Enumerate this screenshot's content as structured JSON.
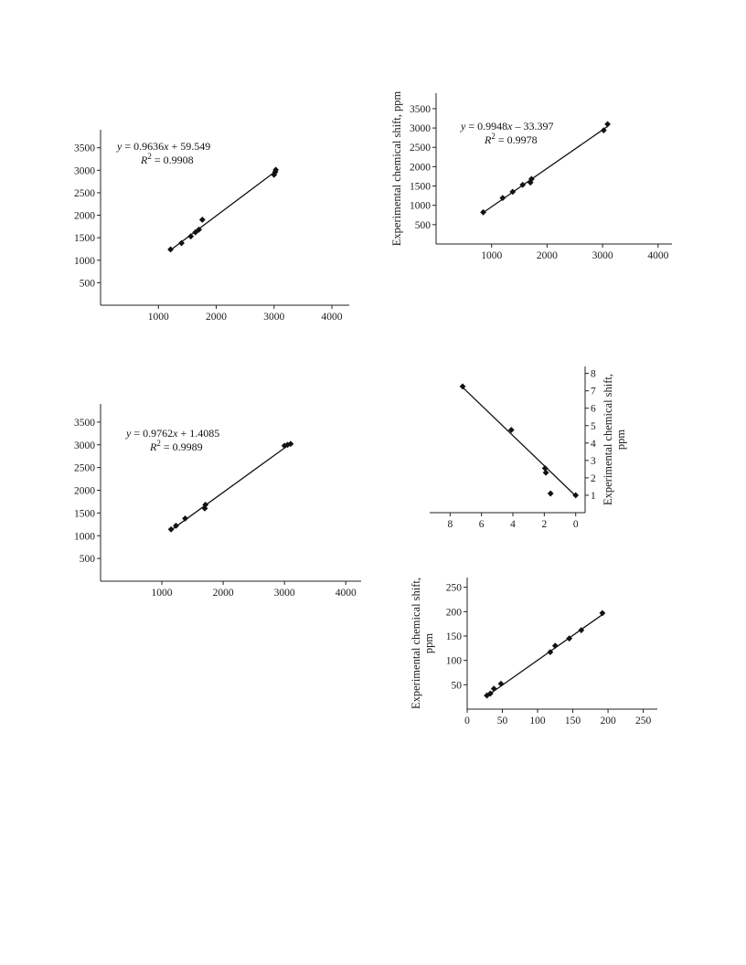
{
  "chart_data": [
    {
      "type": "scatter",
      "title": "",
      "xlabel": "",
      "ylabel": "",
      "xlim": [
        0,
        4300
      ],
      "ylim": [
        0,
        3900
      ],
      "xticks": [
        1000,
        2000,
        3000,
        4000
      ],
      "yticks": [
        500,
        1000,
        1500,
        2000,
        2500,
        3000,
        3500
      ],
      "trend": {
        "var": "y",
        "equation": " = 0.9636x + 59.549",
        "r2_label": "R",
        "r2_value": "2",
        "r2_text": " = 0.9908",
        "slope": 0.9636,
        "intercept": 59.549,
        "x_range": [
          1200,
          3050
        ]
      },
      "series": [
        {
          "points": [
            [
              1210,
              1240
            ],
            [
              1400,
              1380
            ],
            [
              1560,
              1530
            ],
            [
              1640,
              1620
            ],
            [
              1700,
              1680
            ],
            [
              1760,
              1900
            ],
            [
              3000,
              2900
            ],
            [
              3020,
              2960
            ],
            [
              3030,
              3010
            ]
          ]
        }
      ]
    },
    {
      "type": "scatter",
      "title": "",
      "xlabel": "",
      "ylabel": "Experimental chemical shift, ppm",
      "xlim": [
        0,
        4250
      ],
      "ylim": [
        0,
        3900
      ],
      "xticks": [
        1000,
        2000,
        3000,
        4000
      ],
      "yticks": [
        500,
        1000,
        1500,
        2000,
        2500,
        3000,
        3500
      ],
      "trend": {
        "var": "y",
        "equation": " = 0.9948x – 33.397",
        "r2_label": "R",
        "r2_value": "2",
        "r2_text": " = 0.9978",
        "slope": 0.9948,
        "intercept": -33.397,
        "x_range": [
          850,
          3100
        ]
      },
      "series": [
        {
          "points": [
            [
              850,
              820
            ],
            [
              1200,
              1190
            ],
            [
              1380,
              1350
            ],
            [
              1560,
              1530
            ],
            [
              1700,
              1590
            ],
            [
              1720,
              1680
            ],
            [
              3020,
              2940
            ],
            [
              3090,
              3100
            ]
          ]
        }
      ]
    },
    {
      "type": "scatter",
      "title": "",
      "xlabel": "",
      "ylabel": "",
      "xlim": [
        0,
        4250
      ],
      "ylim": [
        0,
        3900
      ],
      "xticks": [
        1000,
        2000,
        3000,
        4000
      ],
      "yticks": [
        500,
        1000,
        1500,
        2000,
        2500,
        3000,
        3500
      ],
      "trend": {
        "var": "y",
        "equation": " = 0.9762x + 1.4085",
        "r2_label": "R",
        "r2_value": "2",
        "r2_text": " = 0.9989",
        "slope": 0.9762,
        "intercept": 1.4085,
        "x_range": [
          1130,
          3080
        ]
      },
      "series": [
        {
          "points": [
            [
              1150,
              1140
            ],
            [
              1230,
              1220
            ],
            [
              1380,
              1380
            ],
            [
              1700,
              1600
            ],
            [
              1710,
              1680
            ],
            [
              3000,
              2980
            ],
            [
              3050,
              3000
            ],
            [
              3100,
              3020
            ]
          ]
        }
      ]
    },
    {
      "type": "scatter",
      "title": "",
      "xlabel": "",
      "ylabel": "Experimental chemical shift, ppm",
      "ylabel_lines": [
        "Experimental chemical shift,",
        "ppm"
      ],
      "xlim": [
        9.3,
        -0.6
      ],
      "ylim": [
        0,
        8.4
      ],
      "xticks": [
        8,
        6,
        4,
        2,
        0
      ],
      "yticks": [
        1,
        2,
        3,
        4,
        5,
        6,
        7,
        8
      ],
      "trend": {
        "var": "",
        "equation": "",
        "r2_label": "",
        "r2_value": "",
        "r2_text": "",
        "x_range": [
          7.2,
          0.1
        ],
        "y_range": [
          7.2,
          1.05
        ]
      },
      "series": [
        {
          "points": [
            [
              7.2,
              7.25
            ],
            [
              4.1,
              4.75
            ],
            [
              1.95,
              2.55
            ],
            [
              1.9,
              2.3
            ],
            [
              1.6,
              1.1
            ],
            [
              0.0,
              1.0
            ]
          ]
        }
      ]
    },
    {
      "type": "scatter",
      "title": "",
      "xlabel": "",
      "ylabel": "Experimental chemical shift, ppm",
      "ylabel_lines": [
        "Experimental chemical shift,",
        "ppm"
      ],
      "xlim": [
        0,
        270
      ],
      "ylim": [
        0,
        270
      ],
      "xticks": [
        0,
        50,
        100,
        150,
        200,
        250
      ],
      "yticks": [
        50,
        100,
        150,
        200,
        250
      ],
      "trend": {
        "var": "",
        "equation": "",
        "r2_label": "",
        "r2_value": "",
        "r2_text": "",
        "x_range": [
          28,
          195
        ],
        "y_range": [
          27,
          197
        ]
      },
      "series": [
        {
          "points": [
            [
              28,
              28
            ],
            [
              33,
              32
            ],
            [
              38,
              42
            ],
            [
              48,
              52
            ],
            [
              118,
              117
            ],
            [
              125,
              130
            ],
            [
              145,
              145
            ],
            [
              162,
              162
            ],
            [
              192,
              197
            ]
          ]
        }
      ]
    }
  ]
}
